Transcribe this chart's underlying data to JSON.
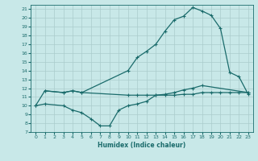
{
  "xlabel": "Humidex (Indice chaleur)",
  "background_color": "#c8e8e8",
  "grid_color": "#aacccc",
  "line_color": "#1a6b6b",
  "xlim": [
    -0.5,
    23.5
  ],
  "ylim": [
    7,
    21.5
  ],
  "xticks": [
    0,
    1,
    2,
    3,
    4,
    5,
    6,
    7,
    8,
    9,
    10,
    11,
    12,
    13,
    14,
    15,
    16,
    17,
    18,
    19,
    20,
    21,
    22,
    23
  ],
  "yticks": [
    7,
    8,
    9,
    10,
    11,
    12,
    13,
    14,
    15,
    16,
    17,
    18,
    19,
    20,
    21
  ],
  "line1_x": [
    0,
    1,
    3,
    4,
    5,
    10,
    11,
    12,
    13,
    14,
    15,
    16,
    17,
    18,
    19,
    20,
    21,
    22,
    23
  ],
  "line1_y": [
    10.0,
    11.7,
    11.5,
    11.7,
    11.5,
    11.2,
    11.2,
    11.2,
    11.2,
    11.2,
    11.2,
    11.3,
    11.3,
    11.5,
    11.5,
    11.5,
    11.5,
    11.5,
    11.5
  ],
  "line2_x": [
    0,
    1,
    3,
    4,
    5,
    6,
    7,
    8,
    9,
    10,
    11,
    12,
    13,
    14,
    15,
    16,
    17,
    18,
    23
  ],
  "line2_y": [
    10.0,
    10.2,
    10.0,
    9.5,
    9.2,
    8.5,
    7.7,
    7.7,
    9.5,
    10.0,
    10.2,
    10.5,
    11.2,
    11.3,
    11.5,
    11.8,
    12.0,
    12.3,
    11.5
  ],
  "line3_x": [
    1,
    3,
    4,
    5,
    10,
    11,
    12,
    13,
    14,
    15,
    16,
    17,
    18,
    19,
    20,
    21,
    22,
    23
  ],
  "line3_y": [
    11.7,
    11.5,
    11.7,
    11.5,
    14.0,
    15.5,
    16.2,
    17.0,
    18.5,
    19.8,
    20.2,
    21.2,
    20.8,
    20.3,
    18.8,
    13.8,
    13.3,
    11.3
  ],
  "marker": "+",
  "markersize": 3.5,
  "linewidth": 0.9
}
